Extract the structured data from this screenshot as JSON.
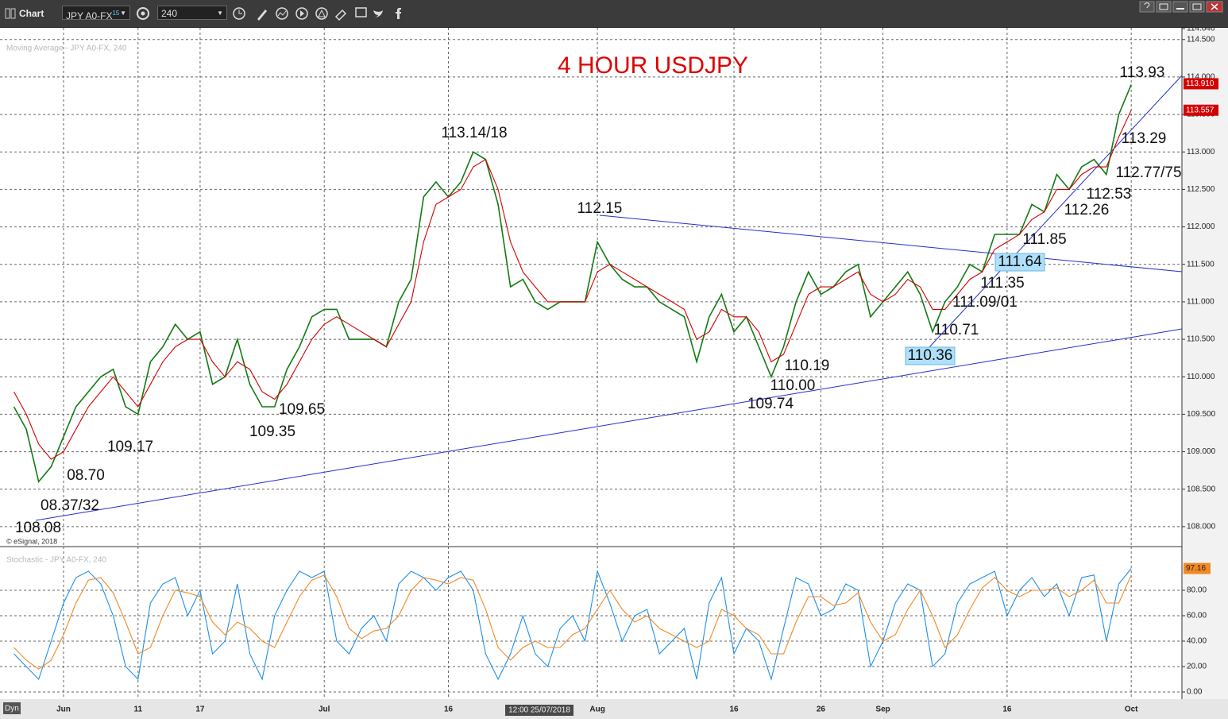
{
  "toolbar": {
    "title": "Chart",
    "symbol": "JPY A0-FX",
    "symbol_badge": "15",
    "interval": "240"
  },
  "footer": {
    "mode": "Dyn",
    "crosshair_time": "12:00 25/07/2018"
  },
  "chart_data": [
    {
      "type": "line",
      "title": "4 HOUR USDJPY",
      "subtitle": "Moving Average - JPY A0-FX, 240",
      "credit": "© eSignal, 2018",
      "categories": [
        null,
        null,
        null,
        null,
        "Jun",
        null,
        null,
        null,
        null,
        null,
        "11",
        null,
        null,
        null,
        null,
        "17",
        null,
        null,
        null,
        null,
        null,
        null,
        null,
        null,
        null,
        "Jul",
        null,
        null,
        null,
        null,
        null,
        null,
        null,
        null,
        null,
        "16",
        null,
        null,
        null,
        null,
        null,
        null,
        null,
        null,
        null,
        null,
        null,
        "Aug",
        null,
        null,
        null,
        null,
        null,
        null,
        null,
        null,
        null,
        null,
        "16",
        null,
        null,
        null,
        null,
        null,
        null,
        "26",
        null,
        null,
        null,
        null,
        "Sep",
        null,
        null,
        null,
        null,
        null,
        null,
        null,
        null,
        null,
        "16",
        null,
        null,
        null,
        null,
        null,
        null,
        null,
        null,
        null,
        "Oct"
      ],
      "series": [
        {
          "color": "#137a13",
          "values": [
            109.6,
            109.3,
            108.6,
            108.8,
            109.2,
            109.6,
            109.8,
            110.0,
            110.1,
            109.6,
            109.5,
            110.2,
            110.4,
            110.7,
            110.5,
            110.6,
            109.9,
            110.0,
            110.5,
            109.9,
            109.6,
            109.6,
            110.1,
            110.4,
            110.8,
            110.9,
            110.9,
            110.5,
            110.5,
            110.5,
            110.4,
            111.0,
            111.3,
            112.4,
            112.6,
            112.4,
            112.6,
            113.0,
            112.9,
            112.3,
            111.2,
            111.3,
            111.0,
            110.9,
            111.0,
            111.0,
            111.0,
            111.8,
            111.5,
            111.3,
            111.2,
            111.2,
            111.0,
            110.9,
            110.8,
            110.2,
            110.8,
            111.1,
            110.6,
            110.8,
            110.4,
            110.0,
            110.4,
            111.0,
            111.4,
            111.1,
            111.2,
            111.4,
            111.5,
            110.8,
            111.0,
            111.2,
            111.4,
            111.1,
            110.6,
            111.0,
            111.2,
            111.5,
            111.4,
            111.9,
            111.9,
            111.9,
            112.3,
            112.2,
            112.7,
            112.5,
            112.8,
            112.9,
            112.7,
            113.5,
            113.9
          ]
        },
        {
          "color": "#d40000",
          "values": [
            109.8,
            109.5,
            109.1,
            108.9,
            109.0,
            109.3,
            109.6,
            109.8,
            110.0,
            109.8,
            109.6,
            109.9,
            110.2,
            110.4,
            110.5,
            110.5,
            110.2,
            110.0,
            110.2,
            110.1,
            109.8,
            109.7,
            109.9,
            110.2,
            110.5,
            110.7,
            110.8,
            110.7,
            110.6,
            110.5,
            110.4,
            110.7,
            111.0,
            111.8,
            112.3,
            112.4,
            112.5,
            112.8,
            112.9,
            112.5,
            111.8,
            111.4,
            111.2,
            111.0,
            111.0,
            111.0,
            111.0,
            111.4,
            111.5,
            111.4,
            111.3,
            111.2,
            111.1,
            111.0,
            110.9,
            110.5,
            110.6,
            110.9,
            110.8,
            110.8,
            110.6,
            110.2,
            110.3,
            110.7,
            111.1,
            111.2,
            111.2,
            111.3,
            111.4,
            111.1,
            111.0,
            111.1,
            111.3,
            111.2,
            110.9,
            110.9,
            111.1,
            111.3,
            111.4,
            111.7,
            111.8,
            111.9,
            112.1,
            112.2,
            112.5,
            112.5,
            112.7,
            112.8,
            112.8,
            113.2,
            113.557
          ]
        }
      ],
      "last_price": {
        "value": 113.91,
        "label": "113.910"
      },
      "ylim": [
        107.734,
        114.646
      ],
      "yticks": [
        {
          "value": 108,
          "label": "108.000"
        },
        {
          "value": 108.5,
          "label": "108.500"
        },
        {
          "value": 109,
          "label": "109.000"
        },
        {
          "value": 109.5,
          "label": "109.500"
        },
        {
          "value": 110,
          "label": "110.000"
        },
        {
          "value": 110.5,
          "label": "110.500"
        },
        {
          "value": 111,
          "label": "111.000"
        },
        {
          "value": 111.5,
          "label": "111.500"
        },
        {
          "value": 112,
          "label": "112.000"
        },
        {
          "value": 112.5,
          "label": "112.500"
        },
        {
          "value": 113,
          "label": "113.000"
        },
        {
          "value": 113.5,
          "label": "113.500"
        },
        {
          "value": 114,
          "label": "114.000"
        },
        {
          "value": 114.5,
          "label": "114.500"
        },
        114.646
      ],
      "grid": true,
      "annotations": [
        "113.93",
        "113.14/18",
        "112.15",
        "113.29",
        "112.77/75",
        "112.53",
        "112.26",
        "111.85",
        "111.64",
        "111.35",
        "111.09/01",
        "110.71",
        "110.36",
        "110.19",
        "110.00",
        "109.74",
        "109.65",
        "109.35",
        "109.17",
        "08.70",
        "08.37/32",
        "108.08"
      ]
    },
    {
      "type": "line",
      "title": "Stochastic - JPY A0-FX, 240",
      "series": [
        {
          "color": "#1e8fe8",
          "values": [
            30,
            20,
            10,
            40,
            70,
            90,
            95,
            85,
            60,
            20,
            10,
            70,
            85,
            90,
            60,
            80,
            30,
            40,
            85,
            30,
            10,
            60,
            80,
            95,
            90,
            95,
            40,
            30,
            50,
            60,
            40,
            85,
            95,
            90,
            80,
            90,
            95,
            80,
            30,
            10,
            30,
            60,
            30,
            20,
            50,
            60,
            40,
            95,
            70,
            40,
            60,
            65,
            30,
            40,
            50,
            10,
            70,
            90,
            30,
            50,
            40,
            10,
            50,
            90,
            85,
            60,
            65,
            85,
            80,
            20,
            40,
            70,
            85,
            80,
            20,
            30,
            70,
            85,
            90,
            95,
            60,
            80,
            90,
            75,
            85,
            60,
            90,
            92,
            40,
            85,
            97.16
          ]
        },
        {
          "color": "#f08a24",
          "values": [
            35,
            25,
            18,
            25,
            45,
            70,
            88,
            90,
            78,
            55,
            30,
            35,
            60,
            80,
            78,
            75,
            55,
            45,
            55,
            50,
            40,
            35,
            55,
            75,
            88,
            92,
            75,
            50,
            42,
            48,
            50,
            60,
            80,
            90,
            88,
            85,
            90,
            88,
            65,
            35,
            25,
            35,
            40,
            35,
            35,
            45,
            50,
            65,
            80,
            65,
            55,
            60,
            50,
            45,
            40,
            35,
            40,
            65,
            60,
            50,
            45,
            30,
            30,
            55,
            75,
            75,
            68,
            70,
            78,
            55,
            40,
            45,
            65,
            80,
            60,
            35,
            45,
            65,
            82,
            90,
            80,
            75,
            80,
            80,
            82,
            75,
            80,
            88,
            70,
            70,
            92
          ]
        }
      ],
      "ylim": [
        -5.625,
        108.75
      ],
      "yticks": [
        {
          "value": 0,
          "label": "0.00"
        },
        {
          "value": 20,
          "label": "20.00"
        },
        {
          "value": 40,
          "label": "40.00"
        },
        {
          "value": 60,
          "label": "60.00"
        },
        {
          "value": 80,
          "label": "80.00"
        }
      ],
      "grid": true
    }
  ]
}
